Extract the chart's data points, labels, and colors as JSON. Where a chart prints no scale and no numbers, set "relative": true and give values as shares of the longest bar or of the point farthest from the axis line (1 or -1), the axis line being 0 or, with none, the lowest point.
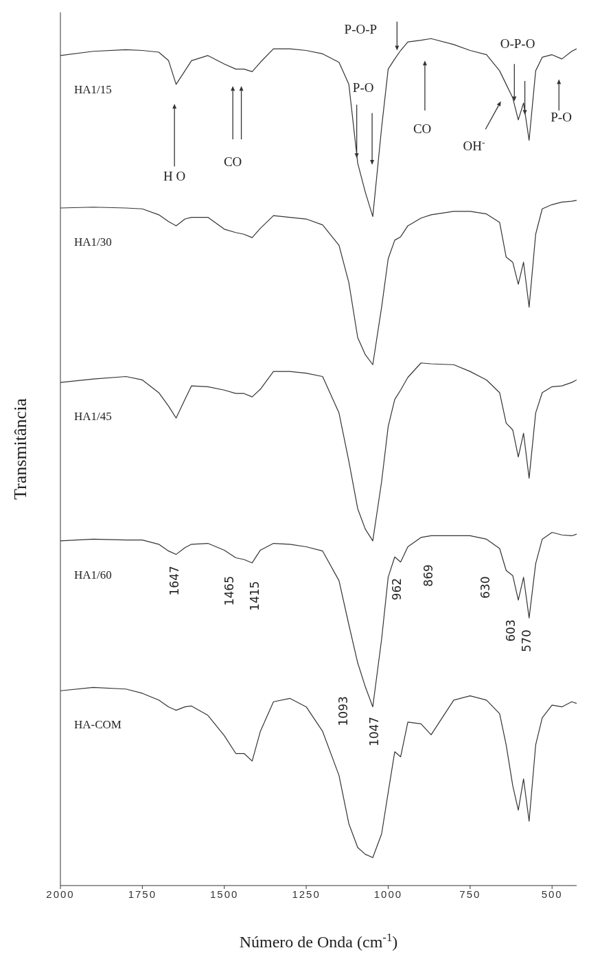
{
  "chart_data": {
    "type": "line",
    "relative": true,
    "xlabel": "Número de Onda (cm$^{-1}$)",
    "ylabel": "Transmitância",
    "xlim": [
      2000,
      425
    ],
    "xticks": [
      2000,
      1750,
      1500,
      1250,
      1000,
      750,
      500
    ],
    "x": [
      2000,
      1900,
      1800,
      1750,
      1700,
      1670,
      1647,
      1620,
      1600,
      1550,
      1500,
      1465,
      1440,
      1415,
      1390,
      1350,
      1300,
      1250,
      1200,
      1150,
      1120,
      1093,
      1070,
      1047,
      1020,
      1000,
      980,
      962,
      940,
      900,
      869,
      800,
      750,
      700,
      660,
      640,
      620,
      603,
      587,
      570,
      550,
      530,
      500,
      470,
      440,
      425
    ],
    "series": [
      {
        "name": "HA1/15",
        "color": "#333333",
        "values": [
          0.98,
          0.985,
          0.987,
          0.986,
          0.984,
          0.974,
          0.946,
          0.962,
          0.974,
          0.98,
          0.97,
          0.964,
          0.964,
          0.961,
          0.972,
          0.988,
          0.988,
          0.986,
          0.982,
          0.972,
          0.946,
          0.853,
          0.819,
          0.79,
          0.895,
          0.964,
          0.976,
          0.986,
          0.996,
          0.998,
          1.0,
          0.993,
          0.986,
          0.981,
          0.962,
          0.946,
          0.93,
          0.904,
          0.924,
          0.88,
          0.962,
          0.978,
          0.981,
          0.976,
          0.985,
          0.988
        ]
      },
      {
        "name": "HA1/30",
        "color": "#333333",
        "values": [
          0.8,
          0.801,
          0.8,
          0.799,
          0.792,
          0.784,
          0.779,
          0.787,
          0.789,
          0.789,
          0.775,
          0.771,
          0.769,
          0.765,
          0.776,
          0.791,
          0.789,
          0.787,
          0.78,
          0.756,
          0.712,
          0.647,
          0.627,
          0.615,
          0.683,
          0.74,
          0.762,
          0.766,
          0.779,
          0.788,
          0.792,
          0.796,
          0.796,
          0.793,
          0.783,
          0.742,
          0.736,
          0.71,
          0.736,
          0.683,
          0.769,
          0.799,
          0.804,
          0.807,
          0.808,
          0.809
        ]
      },
      {
        "name": "HA1/45",
        "color": "#333333",
        "values": [
          0.594,
          0.598,
          0.601,
          0.597,
          0.582,
          0.566,
          0.552,
          0.574,
          0.59,
          0.589,
          0.585,
          0.581,
          0.581,
          0.577,
          0.586,
          0.607,
          0.607,
          0.605,
          0.601,
          0.558,
          0.501,
          0.445,
          0.421,
          0.407,
          0.477,
          0.542,
          0.574,
          0.585,
          0.6,
          0.617,
          0.616,
          0.615,
          0.607,
          0.597,
          0.582,
          0.546,
          0.538,
          0.506,
          0.534,
          0.481,
          0.558,
          0.582,
          0.589,
          0.59,
          0.594,
          0.597
        ]
      },
      {
        "name": "HA1/60",
        "color": "#333333",
        "values": [
          0.407,
          0.409,
          0.408,
          0.408,
          0.403,
          0.395,
          0.391,
          0.399,
          0.403,
          0.404,
          0.396,
          0.387,
          0.385,
          0.381,
          0.396,
          0.404,
          0.403,
          0.4,
          0.395,
          0.36,
          0.308,
          0.263,
          0.235,
          0.211,
          0.291,
          0.364,
          0.388,
          0.382,
          0.4,
          0.411,
          0.413,
          0.413,
          0.413,
          0.409,
          0.398,
          0.372,
          0.366,
          0.337,
          0.364,
          0.316,
          0.38,
          0.409,
          0.417,
          0.414,
          0.413,
          0.415
        ]
      },
      {
        "name": "HA-COM",
        "color": "#333333",
        "values": [
          0.23,
          0.234,
          0.232,
          0.227,
          0.219,
          0.211,
          0.207,
          0.211,
          0.212,
          0.201,
          0.177,
          0.156,
          0.156,
          0.147,
          0.182,
          0.217,
          0.221,
          0.211,
          0.182,
          0.13,
          0.073,
          0.045,
          0.037,
          0.033,
          0.061,
          0.11,
          0.158,
          0.152,
          0.193,
          0.191,
          0.178,
          0.219,
          0.224,
          0.219,
          0.203,
          0.166,
          0.118,
          0.089,
          0.126,
          0.076,
          0.166,
          0.198,
          0.213,
          0.211,
          0.217,
          0.215
        ]
      }
    ],
    "annotations": [
      "H O",
      "CO",
      "P-O-P",
      "P-O",
      "CO",
      "OH$^{-}$",
      "O-P-O",
      "P-O",
      "1647",
      "1465",
      "1415",
      "962",
      "869",
      "630",
      "603",
      "570",
      "1093",
      "1047"
    ]
  }
}
